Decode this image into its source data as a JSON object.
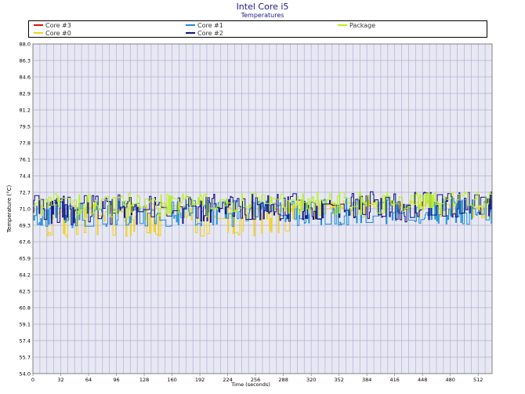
{
  "chart_data": {
    "type": "line",
    "title": "Intel Core i5",
    "subtitle": "Temperatures",
    "xlabel": "Time (seconds)",
    "ylabel": "Temperature (°C)",
    "xlim": [
      0,
      528
    ],
    "ylim": [
      54.0,
      88.0
    ],
    "x_ticks": [
      0,
      32,
      64,
      96,
      128,
      160,
      192,
      224,
      256,
      288,
      320,
      352,
      384,
      416,
      448,
      480,
      512
    ],
    "y_ticks": [
      "54.0",
      "55.7",
      "57.4",
      "59.1",
      "60.8",
      "62.5",
      "64.2",
      "65.9",
      "67.6",
      "69.3",
      "71.0",
      "72.7",
      "74.4",
      "76.1",
      "77.8",
      "79.5",
      "81.2",
      "82.9",
      "84.6",
      "86.3",
      "88.0"
    ],
    "grid": true,
    "legend_position": "top",
    "series": [
      {
        "name": "Core #3",
        "color": "#e01010",
        "visible": false
      },
      {
        "name": "Core #0",
        "color": "#f0d020",
        "base": 70.2,
        "spread": 1.2,
        "dips": 68.0,
        "dip_until": 290
      },
      {
        "name": "Core #1",
        "color": "#1c8fd8",
        "base": 70.3,
        "spread": 1.3,
        "dips": 69.0,
        "dip_until": 528
      },
      {
        "name": "Core #2",
        "color": "#101080",
        "base": 70.6,
        "spread": 1.6,
        "dips": 69.3,
        "dip_until": 528
      },
      {
        "name": "Package",
        "color": "#b8f020",
        "base": 71.2,
        "spread": 1.1,
        "dips": 70.0,
        "dip_until": 528
      }
    ]
  }
}
